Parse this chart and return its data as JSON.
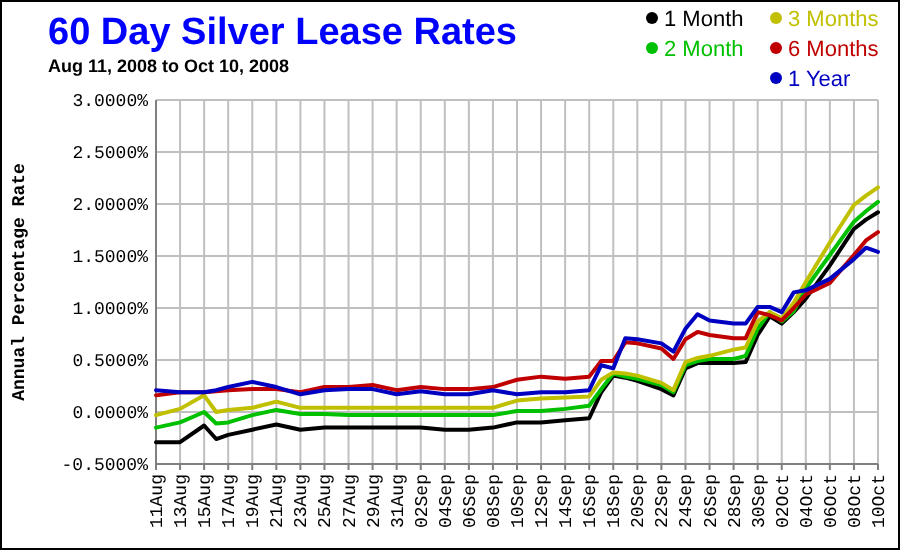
{
  "chart_data": {
    "type": "line",
    "title": "60 Day Silver Lease Rates",
    "subtitle": "Aug 11, 2008 to Oct 10, 2008",
    "ylabel": "Annual Percentage Rate",
    "x": [
      "2008-08-11",
      "2008-08-13",
      "2008-08-15",
      "2008-08-16",
      "2008-08-17",
      "2008-08-19",
      "2008-08-21",
      "2008-08-23",
      "2008-08-25",
      "2008-08-27",
      "2008-08-29",
      "2008-08-31",
      "2008-09-02",
      "2008-09-04",
      "2008-09-06",
      "2008-09-08",
      "2008-09-10",
      "2008-09-12",
      "2008-09-14",
      "2008-09-16",
      "2008-09-17",
      "2008-09-18",
      "2008-09-19",
      "2008-09-20",
      "2008-09-22",
      "2008-09-23",
      "2008-09-24",
      "2008-09-25",
      "2008-09-26",
      "2008-09-28",
      "2008-09-29",
      "2008-09-30",
      "2008-10-01",
      "2008-10-02",
      "2008-10-03",
      "2008-10-04",
      "2008-10-06",
      "2008-10-08",
      "2008-10-09",
      "2008-10-10"
    ],
    "series": [
      {
        "name": "1 Month",
        "color": "#000000",
        "values": [
          -0.29,
          -0.29,
          -0.13,
          -0.26,
          -0.22,
          -0.17,
          -0.12,
          -0.17,
          -0.15,
          -0.15,
          -0.15,
          -0.15,
          -0.15,
          -0.17,
          -0.17,
          -0.15,
          -0.1,
          -0.1,
          -0.08,
          -0.06,
          0.19,
          0.35,
          0.33,
          0.3,
          0.22,
          0.16,
          0.42,
          0.47,
          0.47,
          0.47,
          0.48,
          0.74,
          0.92,
          0.85,
          0.96,
          1.09,
          1.41,
          1.76,
          1.85,
          1.92
        ]
      },
      {
        "name": "2 Month",
        "color": "#00c000",
        "values": [
          -0.15,
          -0.1,
          0.0,
          -0.11,
          -0.1,
          -0.03,
          0.02,
          -0.02,
          -0.02,
          -0.03,
          -0.03,
          -0.03,
          -0.03,
          -0.03,
          -0.03,
          -0.03,
          0.01,
          0.01,
          0.03,
          0.06,
          0.22,
          0.37,
          0.34,
          0.32,
          0.26,
          0.19,
          0.45,
          0.49,
          0.51,
          0.51,
          0.54,
          0.8,
          0.96,
          0.87,
          0.97,
          1.19,
          1.51,
          1.83,
          1.93,
          2.02
        ]
      },
      {
        "name": "3 Months",
        "color": "#c0c000",
        "values": [
          -0.03,
          0.03,
          0.16,
          0.0,
          0.02,
          0.04,
          0.1,
          0.04,
          0.04,
          0.04,
          0.04,
          0.04,
          0.04,
          0.04,
          0.04,
          0.04,
          0.11,
          0.13,
          0.14,
          0.15,
          0.31,
          0.38,
          0.37,
          0.35,
          0.28,
          0.21,
          0.48,
          0.52,
          0.54,
          0.6,
          0.62,
          0.87,
          0.96,
          0.9,
          1.05,
          1.25,
          1.63,
          1.99,
          2.08,
          2.16
        ]
      },
      {
        "name": "6 Months",
        "color": "#c00000",
        "values": [
          0.16,
          0.19,
          0.19,
          0.2,
          0.21,
          0.22,
          0.22,
          0.19,
          0.24,
          0.24,
          0.26,
          0.21,
          0.24,
          0.22,
          0.22,
          0.24,
          0.31,
          0.34,
          0.32,
          0.34,
          0.49,
          0.49,
          0.67,
          0.66,
          0.61,
          0.51,
          0.7,
          0.77,
          0.74,
          0.71,
          0.71,
          0.96,
          0.93,
          0.88,
          1.0,
          1.13,
          1.24,
          1.51,
          1.65,
          1.73
        ]
      },
      {
        "name": "1 Year",
        "color": "#0000c0",
        "values": [
          0.21,
          0.19,
          0.19,
          0.21,
          0.24,
          0.29,
          0.24,
          0.17,
          0.21,
          0.22,
          0.22,
          0.17,
          0.2,
          0.17,
          0.17,
          0.21,
          0.17,
          0.19,
          0.19,
          0.21,
          0.45,
          0.42,
          0.71,
          0.7,
          0.66,
          0.58,
          0.8,
          0.94,
          0.88,
          0.85,
          0.85,
          1.01,
          1.01,
          0.96,
          1.15,
          1.17,
          1.28,
          1.47,
          1.58,
          1.54
        ]
      }
    ],
    "xlim": [
      "2008-08-11",
      "2008-10-10"
    ],
    "xticks": [
      {
        "value": "2008-08-11",
        "label": "11Aug"
      },
      {
        "value": "2008-08-13",
        "label": "13Aug"
      },
      {
        "value": "2008-08-15",
        "label": "15Aug"
      },
      {
        "value": "2008-08-17",
        "label": "17Aug"
      },
      {
        "value": "2008-08-19",
        "label": "19Aug"
      },
      {
        "value": "2008-08-21",
        "label": "21Aug"
      },
      {
        "value": "2008-08-23",
        "label": "23Aug"
      },
      {
        "value": "2008-08-25",
        "label": "25Aug"
      },
      {
        "value": "2008-08-27",
        "label": "27Aug"
      },
      {
        "value": "2008-08-29",
        "label": "29Aug"
      },
      {
        "value": "2008-08-31",
        "label": "31Aug"
      },
      {
        "value": "2008-09-02",
        "label": "02Sep"
      },
      {
        "value": "2008-09-04",
        "label": "04Sep"
      },
      {
        "value": "2008-09-06",
        "label": "06Sep"
      },
      {
        "value": "2008-09-08",
        "label": "08Sep"
      },
      {
        "value": "2008-09-10",
        "label": "10Sep"
      },
      {
        "value": "2008-09-12",
        "label": "12Sep"
      },
      {
        "value": "2008-09-14",
        "label": "14Sep"
      },
      {
        "value": "2008-09-16",
        "label": "16Sep"
      },
      {
        "value": "2008-09-18",
        "label": "18Sep"
      },
      {
        "value": "2008-09-20",
        "label": "20Sep"
      },
      {
        "value": "2008-09-22",
        "label": "22Sep"
      },
      {
        "value": "2008-09-24",
        "label": "24Sep"
      },
      {
        "value": "2008-09-26",
        "label": "26Sep"
      },
      {
        "value": "2008-09-28",
        "label": "28Sep"
      },
      {
        "value": "2008-09-30",
        "label": "30Sep"
      },
      {
        "value": "2008-10-02",
        "label": "02Oct"
      },
      {
        "value": "2008-10-04",
        "label": "04Oct"
      },
      {
        "value": "2008-10-06",
        "label": "06Oct"
      },
      {
        "value": "2008-10-08",
        "label": "08Oct"
      },
      {
        "value": "2008-10-10",
        "label": "10Oct"
      }
    ],
    "ylim": [
      -0.5,
      3
    ],
    "yticks": [
      {
        "value": -0.5,
        "label": "-0.5000%"
      },
      {
        "value": 0,
        "label": "0.0000%"
      },
      {
        "value": 0.5,
        "label": "0.5000%"
      },
      {
        "value": 1,
        "label": "1.0000%"
      },
      {
        "value": 1.5,
        "label": "1.5000%"
      },
      {
        "value": 2,
        "label": "2.0000%"
      },
      {
        "value": 2.5,
        "label": "2.5000%"
      },
      {
        "value": 3,
        "label": "3.0000%"
      }
    ],
    "grid": true,
    "legend": "top right",
    "marker": "none",
    "line_style": "solid"
  }
}
